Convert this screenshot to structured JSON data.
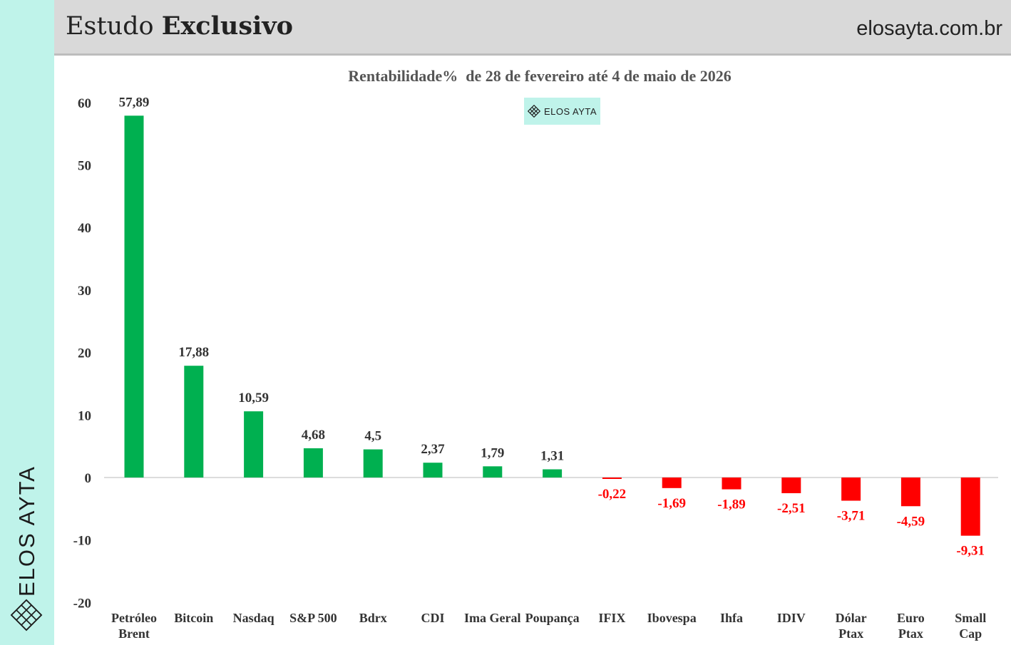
{
  "header": {
    "title_regular": "Estudo",
    "title_bold": "Exclusivo",
    "site": "elosayta.com.br"
  },
  "sidebar": {
    "brand": "ELOS AYTA"
  },
  "badge": {
    "text": "ELOS AYTA"
  },
  "colors": {
    "positive": "#00b050",
    "negative": "#ff0000",
    "accent": "#bff3ea",
    "header_bg": "#d9d9d9"
  },
  "chart_data": {
    "type": "bar",
    "title": "Rentabilidade%  de 28 de fevereiro até 4 de maio de 2026",
    "categories": [
      [
        "Petróleo",
        "Brent"
      ],
      [
        "Bitcoin"
      ],
      [
        "Nasdaq"
      ],
      [
        "S&P 500"
      ],
      [
        "Bdrx"
      ],
      [
        "CDI"
      ],
      [
        "Ima Geral"
      ],
      [
        "Poupança"
      ],
      [
        "IFIX"
      ],
      [
        "Ibovespa"
      ],
      [
        "Ihfa"
      ],
      [
        "IDIV"
      ],
      [
        "Dólar",
        "Ptax"
      ],
      [
        "Euro",
        "Ptax"
      ],
      [
        "Small",
        "Cap"
      ]
    ],
    "values": [
      57.89,
      17.88,
      10.59,
      4.68,
      4.5,
      2.37,
      1.79,
      1.31,
      -0.22,
      -1.69,
      -1.89,
      -2.51,
      -3.71,
      -4.59,
      -9.31
    ],
    "labels": [
      "57,89",
      "17,88",
      "10,59",
      "4,68",
      "4,5",
      "2,37",
      "1,79",
      "1,31",
      "-0,22",
      "-1,69",
      "-1,89",
      "-2,51",
      "-3,71",
      "-4,59",
      "-9,31"
    ],
    "yticks": [
      60,
      50,
      40,
      30,
      20,
      10,
      0,
      -10,
      -20
    ],
    "ylim": [
      -20,
      60
    ],
    "grid": false,
    "legend": "none"
  }
}
